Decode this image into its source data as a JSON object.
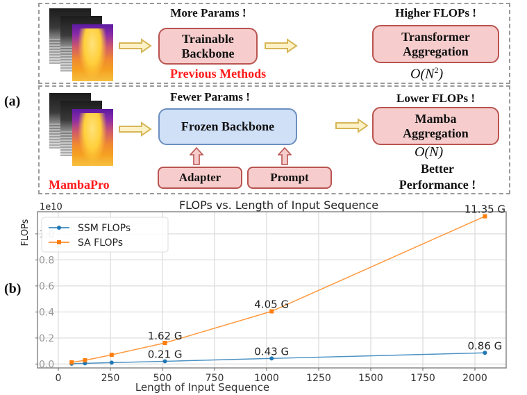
{
  "panel_a": {
    "label": "(a)",
    "top_row": {
      "params_note": "More Params !",
      "flops_note": "Higher FLOPs !",
      "backbone": "Trainable Backbone",
      "aggregation_line1": "Transformer",
      "aggregation_line2": "Aggregation",
      "complexity_base": "O(N",
      "complexity_exp": "2",
      "complexity_close": ")",
      "method_label": "Previous Methods"
    },
    "bottom_row": {
      "params_note": "Fewer Params !",
      "flops_note": "Lower FLOPs !",
      "backbone": "Frozen Backbone",
      "aggregation_line1": "Mamba",
      "aggregation_line2": "Aggregation",
      "complexity": "O(N)",
      "adapter": "Adapter",
      "prompt": "Prompt",
      "perf_line1": "Better",
      "perf_line2": "Performance !",
      "method_label": "MambaPro"
    },
    "colors": {
      "pink_fill": "#f7cccc",
      "pink_border": "#b85450",
      "blue_fill": "#cfe0f7",
      "blue_border": "#6c8ebf",
      "arrow_fill": "#fdf1c8",
      "arrow_stroke": "#d6b656",
      "highlight_red": "#ff1a1a"
    }
  },
  "panel_b": {
    "label": "(b)"
  },
  "chart_data": {
    "type": "line",
    "title": "FLOPs vs. Length of Input Sequence",
    "xlabel": "Length of Input Sequence",
    "ylabel": "FLOPs",
    "y_offset_label": "1e10",
    "xlim": [
      -100,
      2150
    ],
    "ylim": [
      -0.03,
      1.17
    ],
    "x_ticks": [
      0,
      250,
      500,
      750,
      1000,
      1250,
      1500,
      1750,
      2000
    ],
    "y_ticks": [
      0.0,
      0.2,
      0.4,
      0.6,
      0.8,
      1.0
    ],
    "y_tick_labels": [
      "0.0",
      "0.2",
      "0.4",
      "0.6",
      "0.8",
      "1.0"
    ],
    "grid": true,
    "legend_position": "upper left",
    "x": [
      64,
      128,
      256,
      512,
      1024,
      2048
    ],
    "series": [
      {
        "name": "SSM FLOPs",
        "color": "#1f77b4",
        "values": [
          0.0027,
          0.0054,
          0.0107,
          0.021,
          0.043,
          0.086
        ],
        "annotations": [
          {
            "x": 512,
            "text": "0.21 G"
          },
          {
            "x": 1024,
            "text": "0.43 G"
          },
          {
            "x": 2048,
            "text": "0.86 G"
          }
        ]
      },
      {
        "name": "SA FLOPs",
        "color": "#ff7f0e",
        "values": [
          0.0128,
          0.0286,
          0.0707,
          0.162,
          0.405,
          1.135
        ],
        "annotations": [
          {
            "x": 512,
            "text": "1.62 G"
          },
          {
            "x": 1024,
            "text": "4.05 G"
          },
          {
            "x": 2048,
            "text": "11.35 G"
          }
        ]
      }
    ]
  }
}
